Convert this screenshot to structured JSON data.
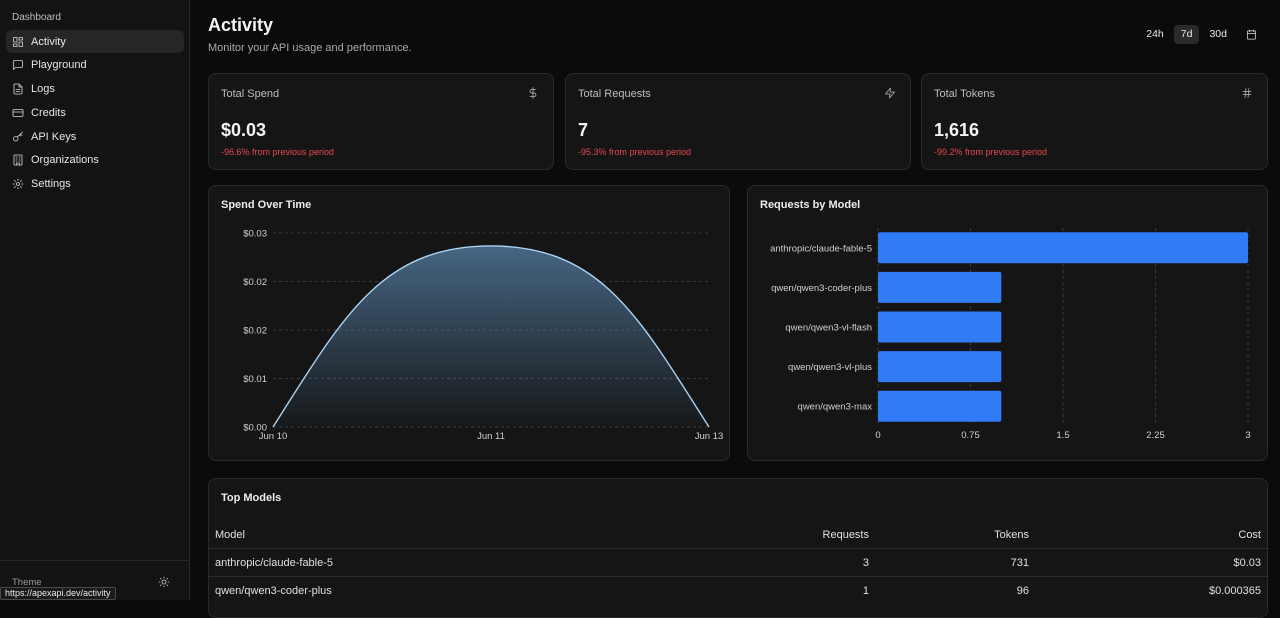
{
  "sidebar": {
    "section": "Dashboard",
    "items": [
      {
        "label": "Activity",
        "icon": "grid-icon",
        "active": true
      },
      {
        "label": "Playground",
        "icon": "message-icon"
      },
      {
        "label": "Logs",
        "icon": "file-icon"
      },
      {
        "label": "Credits",
        "icon": "credit-card-icon"
      },
      {
        "label": "API Keys",
        "icon": "key-icon"
      },
      {
        "label": "Organizations",
        "icon": "building-icon"
      },
      {
        "label": "Settings",
        "icon": "gear-icon"
      }
    ],
    "theme_label": "Theme",
    "theme_icon": "sun-icon"
  },
  "status_url": "https://apexapi.dev/activity",
  "header": {
    "title": "Activity",
    "subtitle": "Monitor your API usage and performance.",
    "ranges": [
      "24h",
      "7d",
      "30d"
    ],
    "active_range": "7d",
    "calendar_icon": "calendar-icon"
  },
  "stats": [
    {
      "label": "Total Spend",
      "icon": "dollar-icon",
      "value": "$0.03",
      "change": "-96.6% from previous period"
    },
    {
      "label": "Total Requests",
      "icon": "lightning-icon",
      "value": "7",
      "change": "-95.3% from previous period"
    },
    {
      "label": "Total Tokens",
      "icon": "hash-icon",
      "value": "1,616",
      "change": "-99.2% from previous period"
    }
  ],
  "colors": {
    "negative": "#e5484d",
    "bar": "#2f7cf6",
    "line": "#a9d4f5"
  },
  "chart_data": [
    {
      "type": "area",
      "title": "Spend Over Time",
      "x": [
        "Jun 10",
        "Jun 11",
        "Jun 13"
      ],
      "y_tick_labels": [
        "$0.00",
        "$0.01",
        "$0.02",
        "$0.02",
        "$0.03"
      ],
      "ylim": [
        0,
        0.03
      ],
      "series": [
        {
          "values": [
            0.0,
            0.028,
            0.0
          ]
        }
      ],
      "grid": true
    },
    {
      "type": "bar",
      "orientation": "horizontal",
      "title": "Requests by Model",
      "categories": [
        "anthropic/claude-fable-5",
        "qwen/qwen3-coder-plus",
        "qwen/qwen3-vl-flash",
        "qwen/qwen3-vl-plus",
        "qwen/qwen3-max"
      ],
      "values": [
        3,
        1,
        1,
        1,
        1
      ],
      "x_ticks": [
        "0",
        "0.75",
        "1.5",
        "2.25",
        "3"
      ],
      "xlim": [
        0,
        3
      ],
      "grid": true
    }
  ],
  "top_models": {
    "title": "Top Models",
    "columns": [
      "Model",
      "Requests",
      "Tokens",
      "Cost"
    ],
    "rows": [
      [
        "anthropic/claude-fable-5",
        "3",
        "731",
        "$0.03"
      ],
      [
        "qwen/qwen3-coder-plus",
        "1",
        "96",
        "$0.000365"
      ]
    ]
  }
}
